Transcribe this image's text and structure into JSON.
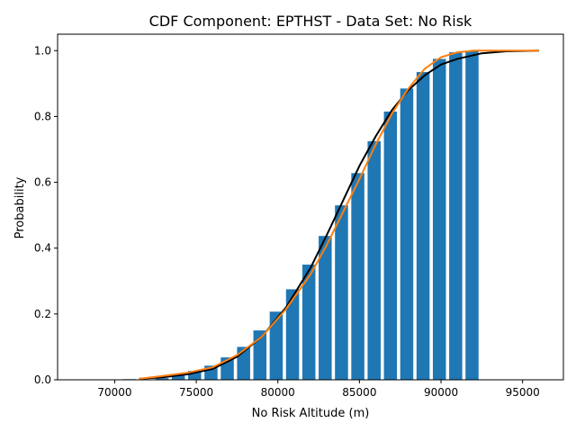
{
  "chart_data": {
    "type": "bar",
    "title": "CDF Component: EPTHST - Data Set: No Risk",
    "xlabel": "No Risk Altitude (m)",
    "ylabel": "Probability",
    "xlim": [
      66500,
      97500
    ],
    "ylim": [
      0,
      1.05
    ],
    "x_ticks": [
      70000,
      75000,
      80000,
      85000,
      90000,
      95000
    ],
    "x_tick_labels": [
      "70000",
      "75000",
      "80000",
      "85000",
      "90000",
      "95000"
    ],
    "y_ticks": [
      0,
      0.2,
      0.4,
      0.6,
      0.8,
      1.0
    ],
    "y_tick_labels": [
      "0.0",
      "0.2",
      "0.4",
      "0.6",
      "0.8",
      "1.0"
    ],
    "grid": false,
    "bar_width": 800,
    "bars": [
      {
        "x": 70900,
        "y": 0.002
      },
      {
        "x": 72900,
        "y": 0.005
      },
      {
        "x": 73900,
        "y": 0.018
      },
      {
        "x": 74900,
        "y": 0.027
      },
      {
        "x": 75900,
        "y": 0.043
      },
      {
        "x": 76900,
        "y": 0.068
      },
      {
        "x": 77900,
        "y": 0.1
      },
      {
        "x": 78900,
        "y": 0.15
      },
      {
        "x": 79900,
        "y": 0.207
      },
      {
        "x": 80900,
        "y": 0.275
      },
      {
        "x": 81900,
        "y": 0.35
      },
      {
        "x": 82900,
        "y": 0.437
      },
      {
        "x": 83900,
        "y": 0.53
      },
      {
        "x": 84900,
        "y": 0.628
      },
      {
        "x": 85900,
        "y": 0.725
      },
      {
        "x": 86900,
        "y": 0.815
      },
      {
        "x": 87900,
        "y": 0.885
      },
      {
        "x": 88900,
        "y": 0.935
      },
      {
        "x": 89900,
        "y": 0.975
      },
      {
        "x": 90900,
        "y": 0.995
      },
      {
        "x": 91900,
        "y": 1.0
      }
    ],
    "series": [
      {
        "color": "#000000",
        "x": [
          71500,
          73000,
          74500,
          76000,
          77500,
          79000,
          80500,
          82000,
          83000,
          84000,
          85000,
          86000,
          87000,
          88000,
          89000,
          90000,
          91000,
          92500,
          94000,
          96000
        ],
        "y": [
          0.003,
          0.008,
          0.017,
          0.033,
          0.07,
          0.13,
          0.22,
          0.34,
          0.44,
          0.545,
          0.65,
          0.74,
          0.82,
          0.88,
          0.925,
          0.958,
          0.975,
          0.992,
          0.998,
          1.0
        ]
      },
      {
        "color": "#ff7f0e",
        "x": [
          71500,
          73000,
          74500,
          76000,
          77500,
          79000,
          80500,
          82000,
          83000,
          84000,
          85000,
          86000,
          87000,
          88000,
          89000,
          90000,
          91000,
          92000,
          93000,
          96000
        ],
        "y": [
          0.003,
          0.012,
          0.022,
          0.038,
          0.075,
          0.13,
          0.215,
          0.32,
          0.41,
          0.51,
          0.61,
          0.715,
          0.81,
          0.885,
          0.945,
          0.98,
          0.995,
          1.0,
          1.0,
          1.0
        ]
      }
    ]
  },
  "colors": {
    "bar": "#1f77b4",
    "axes": "#000000"
  }
}
